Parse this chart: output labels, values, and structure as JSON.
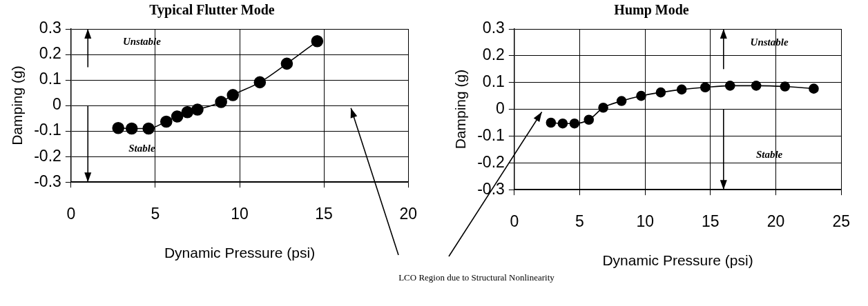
{
  "chart_data": [
    {
      "type": "line",
      "title": "Typical Flutter Mode",
      "xlabel": "Dynamic Pressure (psi)",
      "ylabel": "Damping (g)",
      "x": [
        2.8,
        3.6,
        4.6,
        5.65,
        6.3,
        6.9,
        7.5,
        8.9,
        9.6,
        11.2,
        12.8,
        14.6
      ],
      "values": [
        -0.088,
        -0.09,
        -0.09,
        -0.063,
        -0.043,
        -0.026,
        -0.016,
        0.014,
        0.041,
        0.091,
        0.164,
        0.252
      ],
      "color": "#000000",
      "marker": "circle",
      "line_style": "solid",
      "grid": true,
      "xlim": [
        0,
        20
      ],
      "xticks": [
        0,
        5,
        10,
        15,
        20
      ],
      "ylim": [
        -0.3,
        0.3
      ],
      "yticks": [
        -0.3,
        -0.2,
        -0.1,
        0,
        0.1,
        0.2,
        0.3
      ],
      "annotations": [
        "Unstable",
        "Stable",
        "LCO Region due to Structural Nonlinearity"
      ]
    },
    {
      "type": "line",
      "title": "Hump Mode",
      "xlabel": "Dynamic Pressure (psi)",
      "ylabel": "Damping (g)",
      "x": [
        2.8,
        3.7,
        4.6,
        5.7,
        6.8,
        8.2,
        9.7,
        11.2,
        12.8,
        14.6,
        16.5,
        18.5,
        20.7,
        22.9
      ],
      "values": [
        -0.05,
        -0.053,
        -0.053,
        -0.039,
        0.006,
        0.031,
        0.05,
        0.063,
        0.074,
        0.082,
        0.088,
        0.088,
        0.085,
        0.077
      ],
      "color": "#000000",
      "marker": "circle",
      "line_style": "solid",
      "grid": true,
      "xlim": [
        0,
        25
      ],
      "xticks": [
        0,
        5,
        10,
        15,
        20,
        25
      ],
      "ylim": [
        -0.3,
        0.3
      ],
      "yticks": [
        -0.3,
        -0.2,
        -0.1,
        0,
        0.1,
        0.2,
        0.3
      ],
      "annotations": [
        "Unstable",
        "Stable"
      ]
    }
  ]
}
